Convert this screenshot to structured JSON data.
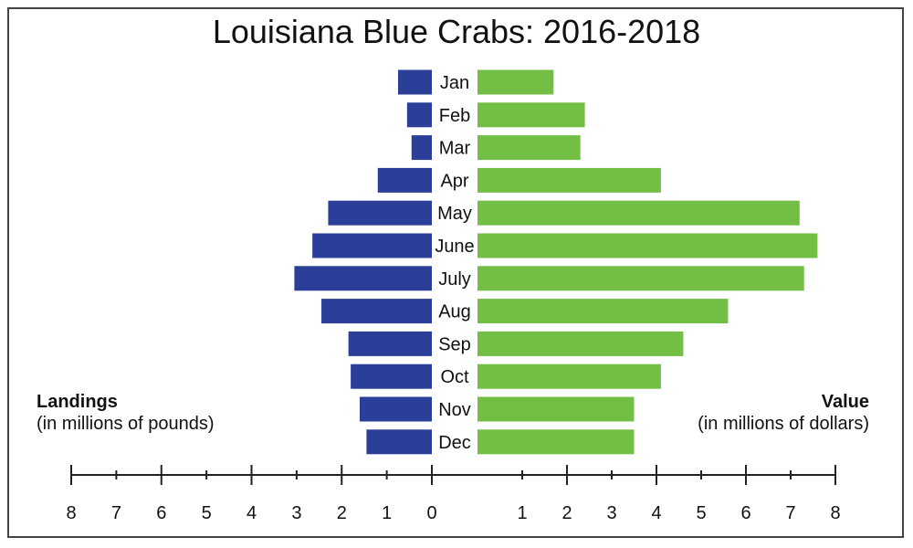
{
  "title": "Louisiana Blue Crabs: 2016-2018",
  "left_axis": {
    "name": "Landings",
    "unit": "(in millions of pounds)"
  },
  "right_axis": {
    "name": "Value",
    "unit": "(in millions of dollars)"
  },
  "colors": {
    "landings": "#2b3f99",
    "value": "#73be44"
  },
  "chart_data": {
    "type": "bar",
    "orientation": "horizontal-butterfly",
    "title": "Louisiana Blue Crabs: 2016-2018",
    "categories": [
      "Jan",
      "Feb",
      "Mar",
      "Apr",
      "May",
      "June",
      "July",
      "Aug",
      "Sep",
      "Oct",
      "Nov",
      "Dec"
    ],
    "series": [
      {
        "name": "Landings",
        "side": "left",
        "values": [
          0.75,
          0.55,
          0.45,
          1.2,
          2.3,
          2.65,
          3.05,
          2.45,
          1.85,
          1.8,
          1.6,
          1.45
        ]
      },
      {
        "name": "Value",
        "side": "right",
        "values": [
          1.7,
          2.4,
          2.3,
          4.1,
          7.2,
          7.6,
          7.3,
          5.6,
          4.6,
          4.1,
          3.5,
          3.5
        ]
      }
    ],
    "x_ticks_left": [
      "8",
      "7",
      "6",
      "5",
      "4",
      "3",
      "2",
      "1",
      "0"
    ],
    "x_ticks_right": [
      "1",
      "2",
      "3",
      "4",
      "5",
      "6",
      "7",
      "8"
    ],
    "xlim_left": [
      0,
      8
    ],
    "xlim_right": [
      0,
      8
    ],
    "legend": "none",
    "grid": false
  }
}
